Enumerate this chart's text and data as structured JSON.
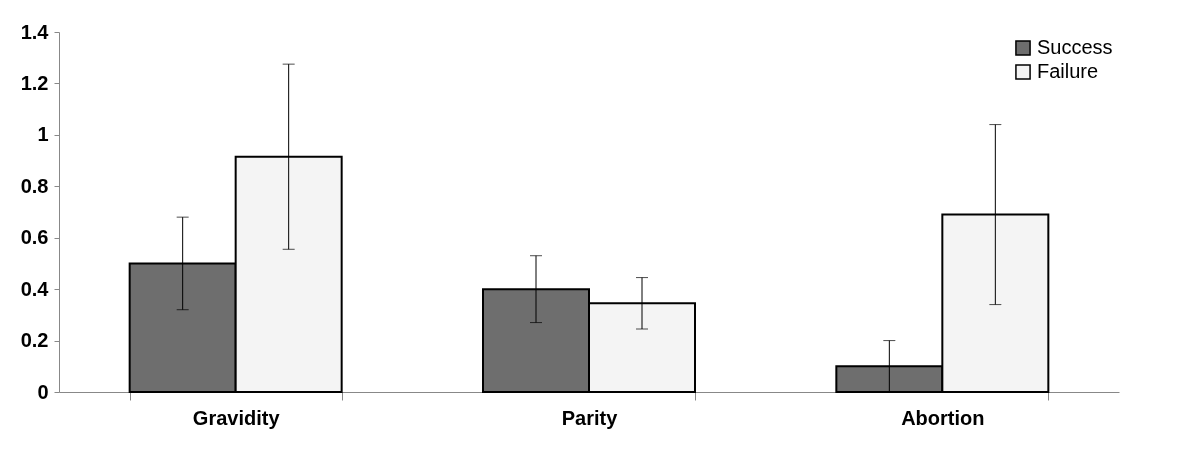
{
  "chart_data": {
    "type": "bar",
    "categories": [
      "Gravidity",
      "Parity",
      "Abortion"
    ],
    "series": [
      {
        "name": "Success",
        "color": "#6e6e6e",
        "values": [
          0.5,
          0.4,
          0.1
        ],
        "errors": [
          0.18,
          0.13,
          0.1
        ]
      },
      {
        "name": "Failure",
        "color": "#f4f4f4",
        "values": [
          0.915,
          0.345,
          0.69
        ],
        "errors": [
          0.36,
          0.1,
          0.35
        ]
      }
    ],
    "ylim": [
      0,
      1.4
    ],
    "yticks": [
      0,
      0.2,
      0.4,
      0.6,
      0.8,
      1,
      1.2,
      1.4
    ],
    "legend": "top right"
  }
}
